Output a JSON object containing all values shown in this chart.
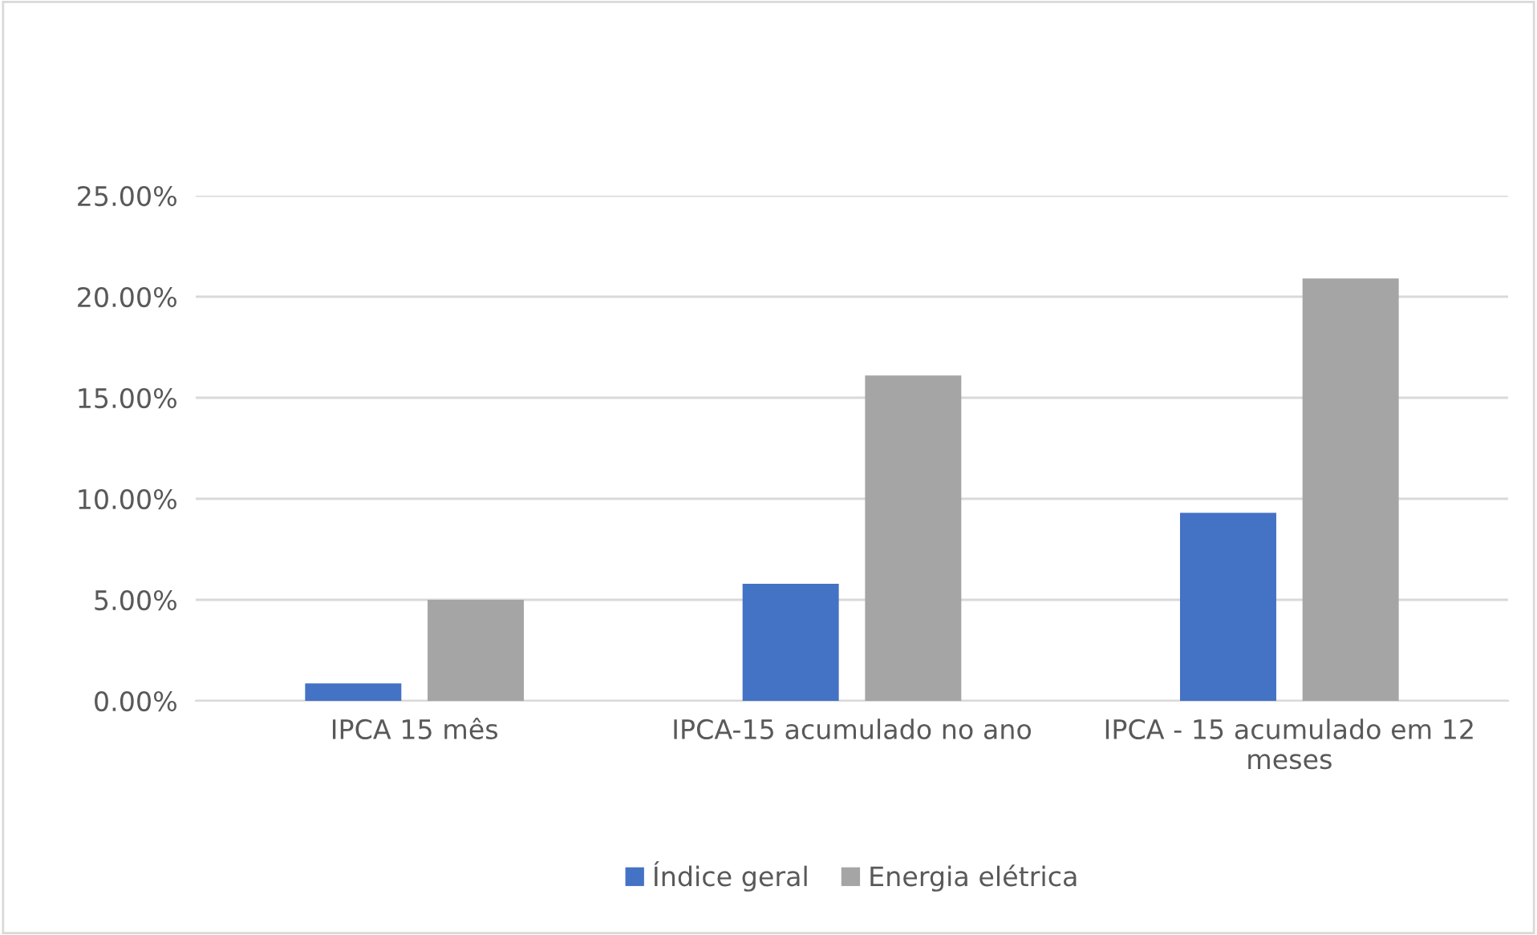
{
  "chart_data": {
    "type": "bar",
    "categories": [
      "IPCA 15 mês",
      "IPCA-15 acumulado no ano",
      "IPCA - 15 acumulado em 12 meses"
    ],
    "series": [
      {
        "name": "Índice geral",
        "color": "#4472c4",
        "values": [
          0.86,
          5.79,
          9.31
        ]
      },
      {
        "name": "Energia elétrica",
        "color": "#a5a5a5",
        "values": [
          5.0,
          16.1,
          20.9
        ]
      }
    ],
    "ylim": [
      0,
      25
    ],
    "yticks": [
      {
        "value": 0,
        "label": "0.00%"
      },
      {
        "value": 5,
        "label": "5.00%"
      },
      {
        "value": 10,
        "label": "10.00%"
      },
      {
        "value": 15,
        "label": "15.00%"
      },
      {
        "value": 20,
        "label": "20.00%"
      },
      {
        "value": 25,
        "label": "25.00%"
      }
    ],
    "grid": "y",
    "legend": "bottom"
  }
}
